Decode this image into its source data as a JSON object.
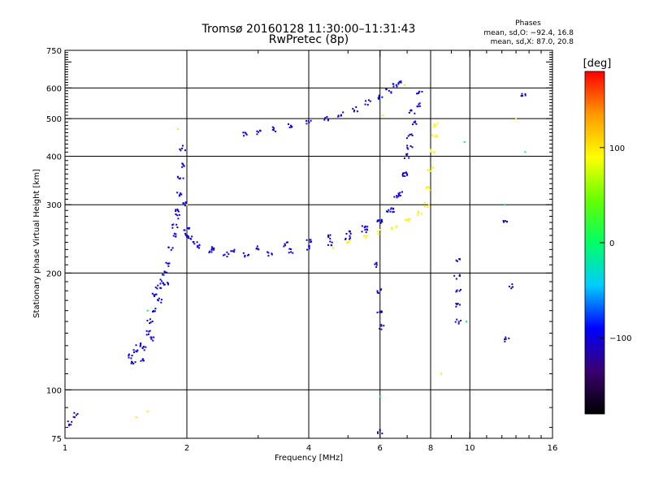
{
  "chart_data": {
    "type": "scatter",
    "title": "Tromsø 20160128 11:30:00–11:31:43",
    "subtitle": "RwPretec (8p)",
    "stats": {
      "heading": "Phases",
      "line_o": "mean, sd,O: −92.4, 16.8",
      "line_x": "mean, sd,X:  87.0, 20.8"
    },
    "xlabel": "Frequency [MHz]",
    "ylabel": "Stationary phase Virtual Height [km]",
    "x_scale": "log",
    "y_scale": "log",
    "xlim": [
      1,
      16
    ],
    "ylim": [
      75,
      750
    ],
    "x_ticks": [
      1,
      2,
      4,
      6,
      8,
      10,
      16
    ],
    "x_tick_labels": [
      "1",
      "2",
      "4",
      "6",
      "8",
      "10",
      "16"
    ],
    "x_gridlines": [
      2,
      4,
      6,
      8,
      10
    ],
    "y_ticks": [
      75,
      100,
      200,
      300,
      400,
      500,
      600,
      750
    ],
    "y_tick_labels": [
      "75",
      "100",
      "200",
      "300",
      "400",
      "500",
      "600",
      "750"
    ],
    "y_gridlines": [
      100,
      200,
      300,
      400,
      500,
      600
    ],
    "grid": true,
    "colorbar": {
      "label": "[deg]",
      "min": -180,
      "max": 180,
      "ticks": [
        -100,
        0,
        100
      ],
      "tick_labels": [
        "−100",
        "0",
        "100"
      ],
      "colormap": [
        "#000000",
        "#3a006f",
        "#0000ff",
        "#00ccff",
        "#00ff66",
        "#66ff00",
        "#ffff00",
        "#ff9900",
        "#ff0000"
      ]
    },
    "series": [
      {
        "phase": -95,
        "points": [
          [
            1.45,
            122
          ],
          [
            1.47,
            118
          ],
          [
            1.5,
            126
          ],
          [
            1.52,
            130
          ],
          [
            1.55,
            120
          ],
          [
            1.57,
            128
          ],
          [
            1.6,
            140
          ],
          [
            1.62,
            150
          ],
          [
            1.63,
            135
          ],
          [
            1.65,
            160
          ],
          [
            1.67,
            175
          ],
          [
            1.7,
            185
          ],
          [
            1.72,
            170
          ],
          [
            1.74,
            190
          ],
          [
            1.76,
            200
          ],
          [
            1.78,
            188
          ],
          [
            1.8,
            210
          ],
          [
            1.82,
            230
          ],
          [
            1.85,
            250
          ],
          [
            1.87,
            265
          ],
          [
            1.89,
            280
          ],
          [
            1.9,
            290
          ],
          [
            1.92,
            320
          ],
          [
            1.93,
            350
          ],
          [
            1.94,
            380
          ],
          [
            1.95,
            420
          ],
          [
            1.97,
            300
          ],
          [
            2.0,
            260
          ],
          [
            2.05,
            245
          ],
          [
            2.15,
            235
          ],
          [
            2.3,
            228
          ],
          [
            2.5,
            223
          ],
          [
            2.8,
            222
          ],
          [
            3.2,
            224
          ],
          [
            3.6,
            228
          ],
          [
            4.0,
            232
          ],
          [
            4.5,
            238
          ],
          [
            5.0,
            246
          ],
          [
            5.5,
            258
          ],
          [
            6.0,
            275
          ],
          [
            6.3,
            290
          ],
          [
            6.6,
            315
          ],
          [
            6.9,
            360
          ],
          [
            7.1,
            420
          ],
          [
            7.3,
            490
          ],
          [
            7.45,
            540
          ],
          [
            7.5,
            580
          ]
        ]
      },
      {
        "phase": -105,
        "points": [
          [
            2.0,
            250
          ],
          [
            2.1,
            238
          ],
          [
            2.3,
            232
          ],
          [
            2.6,
            230
          ],
          [
            3.0,
            232
          ],
          [
            3.5,
            237
          ],
          [
            4.0,
            242
          ],
          [
            4.5,
            248
          ],
          [
            5.0,
            255
          ],
          [
            5.5,
            262
          ],
          [
            6.0,
            272
          ],
          [
            6.4,
            290
          ],
          [
            6.7,
            320
          ],
          [
            6.9,
            360
          ],
          [
            7.0,
            400
          ],
          [
            7.1,
            450
          ],
          [
            7.2,
            520
          ]
        ]
      },
      {
        "phase": -98,
        "points": [
          [
            2.8,
            455
          ],
          [
            3.0,
            462
          ],
          [
            3.3,
            470
          ],
          [
            3.6,
            480
          ],
          [
            4.0,
            490
          ],
          [
            4.4,
            500
          ],
          [
            4.8,
            512
          ],
          [
            5.2,
            528
          ],
          [
            5.6,
            550
          ],
          [
            6.0,
            570
          ],
          [
            6.3,
            590
          ],
          [
            6.5,
            610
          ],
          [
            6.7,
            620
          ]
        ]
      },
      {
        "phase": 95,
        "points": [
          [
            5.0,
            242
          ],
          [
            5.5,
            248
          ],
          [
            6.0,
            255
          ],
          [
            6.5,
            262
          ],
          [
            7.0,
            272
          ],
          [
            7.5,
            285
          ],
          [
            7.8,
            300
          ],
          [
            7.9,
            330
          ],
          [
            8.0,
            370
          ],
          [
            8.1,
            410
          ],
          [
            8.15,
            450
          ],
          [
            8.2,
            480
          ]
        ]
      },
      {
        "phase": 100,
        "points": [
          [
            1.5,
            85
          ],
          [
            1.6,
            88
          ],
          [
            1.9,
            470
          ],
          [
            2.0,
            300
          ],
          [
            6.1,
            510
          ],
          [
            6.9,
            610
          ],
          [
            8.5,
            110
          ],
          [
            13.0,
            500
          ],
          [
            4.6,
            232
          ]
        ]
      },
      {
        "phase": -110,
        "points": [
          [
            1.03,
            82
          ],
          [
            1.06,
            86
          ],
          [
            5.9,
            210
          ],
          [
            5.95,
            180
          ],
          [
            6.0,
            160
          ],
          [
            6.05,
            145
          ],
          [
            9.3,
            215
          ],
          [
            9.3,
            195
          ],
          [
            9.35,
            180
          ],
          [
            9.3,
            165
          ],
          [
            9.35,
            150
          ],
          [
            12.2,
            270
          ],
          [
            12.6,
            185
          ],
          [
            13.6,
            575
          ],
          [
            12.3,
            135
          ],
          [
            6.0,
            78
          ]
        ]
      },
      {
        "phase": -20,
        "points": [
          [
            6.0,
            96
          ],
          [
            9.7,
            435
          ],
          [
            12.2,
            300
          ],
          [
            13.7,
            410
          ],
          [
            1.6,
            160
          ],
          [
            9.8,
            150
          ]
        ]
      }
    ]
  }
}
